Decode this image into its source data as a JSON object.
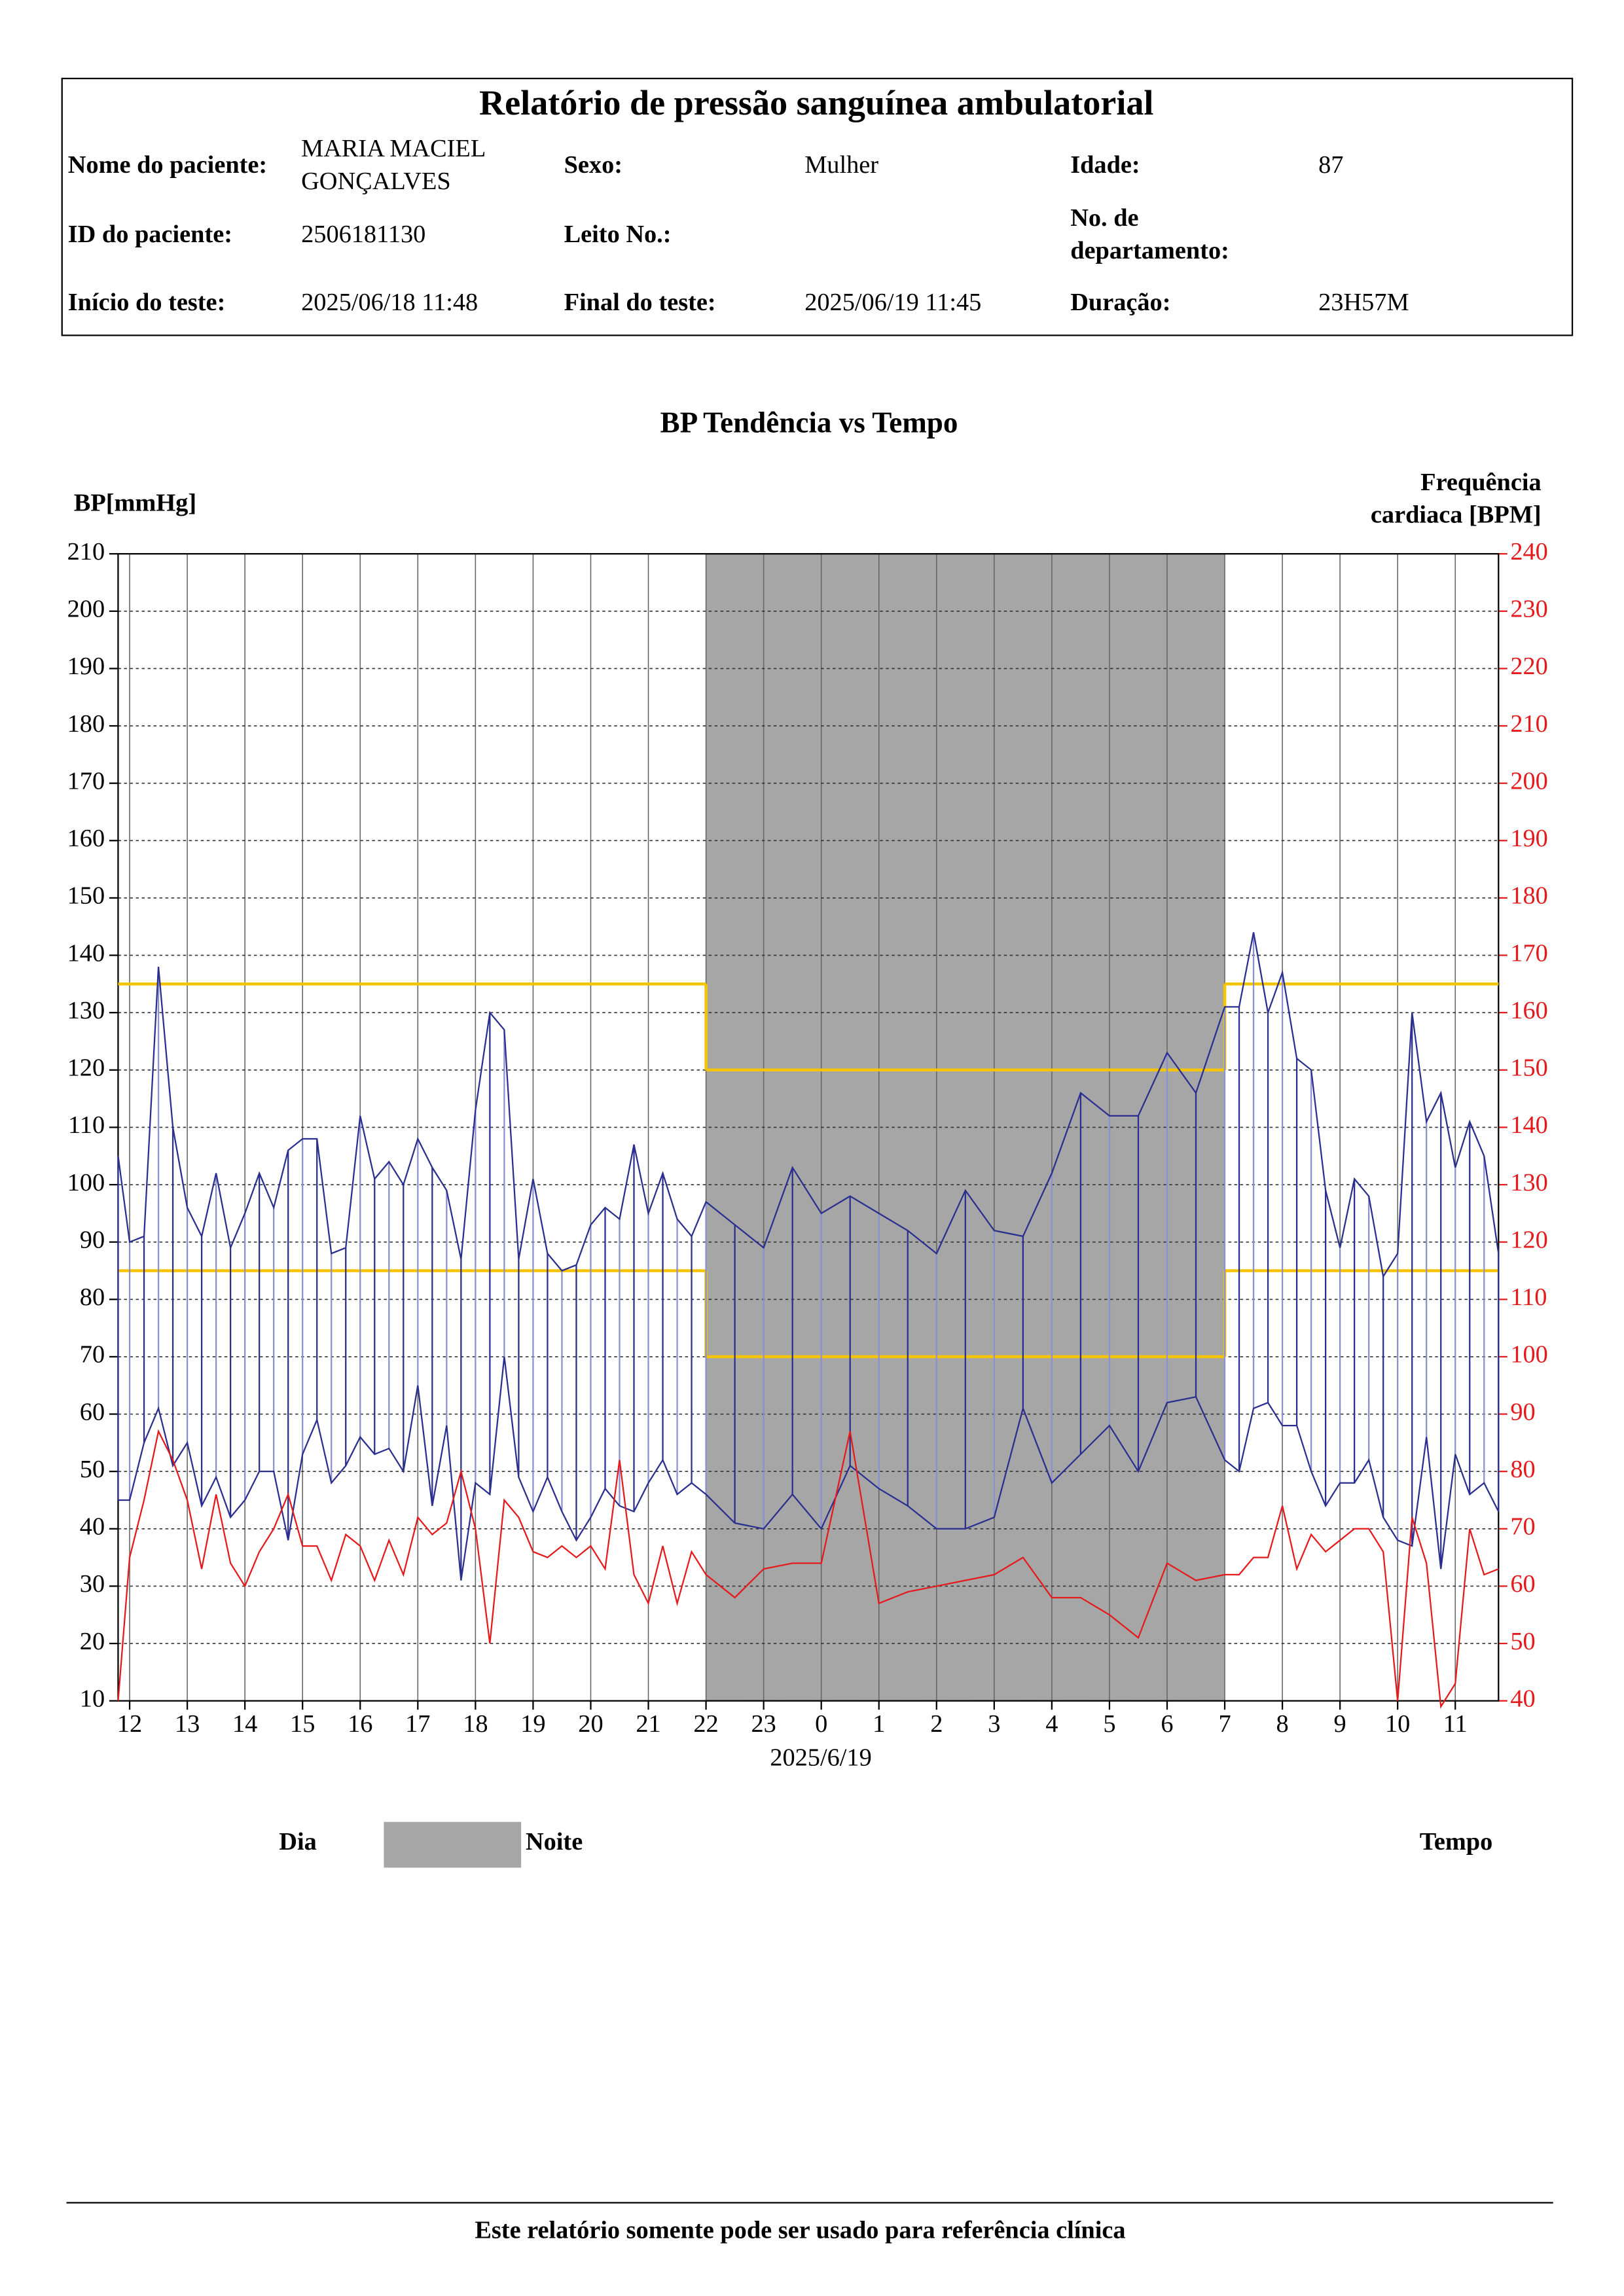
{
  "header": {
    "title": "Relatório de pressão sanguínea ambulatorial",
    "fields": [
      {
        "label": "Nome do paciente:",
        "value": [
          "MARIA MACIEL",
          "GONÇALVES"
        ]
      },
      {
        "label": "Sexo:",
        "value": "Mulher"
      },
      {
        "label": "Idade:",
        "value": "87"
      },
      {
        "label": "ID do paciente:",
        "value": "2506181130"
      },
      {
        "label": "Leito No.:"
      },
      {
        "label": [
          "No. de",
          "departamento:"
        ]
      },
      {
        "label": "Início do teste:",
        "value": "2025/06/18 11:48"
      },
      {
        "label": "Final do teste:",
        "value": "2025/06/19 11:45"
      },
      {
        "label": "Duração:",
        "value": "23H57M"
      }
    ]
  },
  "chart_data": {
    "type": "line",
    "title": "BP Tendência vs Tempo",
    "y_label": "BP[mmHg]",
    "y2_label": [
      "Frequência",
      "cardiaca [BPM]"
    ],
    "x_sublabel": "2025/6/19",
    "x": [
      11.8,
      12,
      12.25,
      12.5,
      12.75,
      13,
      13.25,
      13.5,
      13.75,
      14,
      14.25,
      14.5,
      14.75,
      15,
      15.25,
      15.5,
      15.75,
      16,
      16.25,
      16.5,
      16.75,
      17,
      17.25,
      17.5,
      17.75,
      18,
      18.25,
      18.5,
      18.75,
      19,
      19.25,
      19.5,
      19.75,
      20,
      20.25,
      20.5,
      20.75,
      21,
      21.25,
      21.5,
      21.75,
      22,
      22.5,
      23,
      23.5,
      24,
      24.5,
      25,
      25.5,
      26,
      26.5,
      27,
      27.5,
      28,
      28.5,
      29,
      29.5,
      30,
      30.5,
      31,
      31.25,
      31.5,
      31.75,
      32,
      32.25,
      32.5,
      32.75,
      33,
      33.25,
      33.5,
      33.75,
      34,
      34.25,
      34.5,
      34.75,
      35,
      35.25,
      35.5,
      35.75
    ],
    "xlim": [
      11.8,
      35.75
    ],
    "xticks": [
      12,
      13,
      14,
      15,
      16,
      17,
      18,
      19,
      20,
      21,
      22,
      23,
      {
        "value": 24,
        "label": "0"
      },
      {
        "value": 25,
        "label": "1"
      },
      {
        "value": 26,
        "label": "2"
      },
      {
        "value": 27,
        "label": "3"
      },
      {
        "value": 28,
        "label": "4"
      },
      {
        "value": 29,
        "label": "5"
      },
      {
        "value": 30,
        "label": "6"
      },
      {
        "value": 31,
        "label": "7"
      },
      {
        "value": 32,
        "label": "8"
      },
      {
        "value": 33,
        "label": "9"
      },
      {
        "value": 34,
        "label": "10"
      },
      {
        "value": 35,
        "label": "11"
      }
    ],
    "ylim": [
      10,
      210
    ],
    "yticks": [
      10,
      20,
      30,
      40,
      50,
      60,
      70,
      80,
      90,
      100,
      110,
      120,
      130,
      140,
      150,
      160,
      170,
      180,
      190,
      200,
      210
    ],
    "y2lim": [
      40,
      240
    ],
    "y2ticks": [
      40,
      50,
      60,
      70,
      80,
      90,
      100,
      110,
      120,
      130,
      140,
      150,
      160,
      170,
      180,
      190,
      200,
      210,
      220,
      230,
      240
    ],
    "series": [
      {
        "color": "#2a2f8f",
        "values": [
          105,
          90,
          91,
          138,
          110,
          96,
          91,
          102,
          89,
          95,
          102,
          96,
          106,
          108,
          108,
          88,
          89,
          112,
          101,
          104,
          100,
          108,
          103,
          99,
          87,
          113,
          130,
          127,
          87,
          101,
          88,
          85,
          86,
          93,
          96,
          94,
          107,
          95,
          102,
          94,
          91,
          97,
          93,
          89,
          103,
          95,
          98,
          95,
          92,
          88,
          99,
          92,
          91,
          102,
          116,
          112,
          112,
          123,
          116,
          131,
          131,
          144,
          130,
          137,
          122,
          120,
          99,
          89,
          101,
          98,
          84,
          88,
          130,
          111,
          116,
          103,
          111,
          105,
          88
        ]
      },
      {
        "color": "#2a2f8f",
        "values": [
          45,
          45,
          55,
          61,
          51,
          55,
          44,
          49,
          42,
          45,
          50,
          50,
          38,
          53,
          59,
          48,
          51,
          56,
          53,
          54,
          50,
          65,
          44,
          58,
          31,
          48,
          46,
          70,
          49,
          43,
          49,
          43,
          38,
          42,
          47,
          44,
          43,
          48,
          52,
          46,
          48,
          46,
          41,
          40,
          46,
          40,
          51,
          47,
          44,
          40,
          40,
          42,
          61,
          48,
          53,
          58,
          50,
          62,
          63,
          52,
          50,
          61,
          62,
          58,
          58,
          50,
          44,
          48,
          48,
          52,
          42,
          38,
          37,
          56,
          33,
          53,
          46,
          48,
          43
        ]
      },
      {
        "color": "#e41a1c",
        "axis": "y2",
        "values": [
          40,
          65,
          75,
          87,
          82,
          75,
          63,
          76,
          64,
          60,
          66,
          70,
          76,
          67,
          67,
          61,
          69,
          67,
          61,
          68,
          62,
          72,
          69,
          71,
          80,
          70,
          50,
          75,
          72,
          66,
          65,
          67,
          65,
          67,
          63,
          82,
          62,
          57,
          67,
          57,
          66,
          62,
          58,
          63,
          64,
          64,
          87,
          57,
          59,
          60,
          61,
          62,
          65,
          58,
          58,
          55,
          51,
          64,
          61,
          62,
          62,
          65,
          65,
          74,
          63,
          69,
          66,
          68,
          70,
          70,
          66,
          40,
          72,
          64,
          39,
          43,
          70,
          62,
          63
        ]
      }
    ],
    "night": [
      22,
      31
    ],
    "night_color": "#a6a6a6",
    "limits": {
      "day": [
        135,
        85
      ],
      "night": [
        120,
        70
      ]
    },
    "limit_color": "#f5c400",
    "grid": true
  },
  "legend": {
    "day": "Dia",
    "night": "Noite",
    "time": "Tempo"
  },
  "footer": "Este relatório somente pode ser usado para referência clínica"
}
